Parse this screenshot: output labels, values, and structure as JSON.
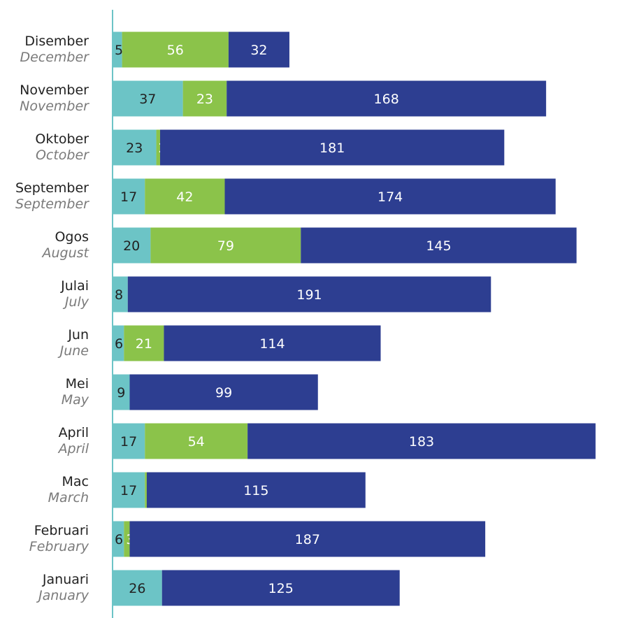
{
  "chart_data": {
    "type": "bar",
    "orientation": "horizontal",
    "stacked": true,
    "title": "",
    "xlabel": "",
    "ylabel": "",
    "xlim": [
      0,
      270
    ],
    "grid": false,
    "legend": "none",
    "categories": [
      {
        "label": "Disember",
        "label_en": "December"
      },
      {
        "label": "November",
        "label_en": "November"
      },
      {
        "label": "Oktober",
        "label_en": "October"
      },
      {
        "label": "September",
        "label_en": "September"
      },
      {
        "label": "Ogos",
        "label_en": "August"
      },
      {
        "label": "Julai",
        "label_en": "July"
      },
      {
        "label": "Jun",
        "label_en": "June"
      },
      {
        "label": "Mei",
        "label_en": "May"
      },
      {
        "label": "April",
        "label_en": "April"
      },
      {
        "label": "Mac",
        "label_en": "March"
      },
      {
        "label": "Februari",
        "label_en": "February"
      },
      {
        "label": "Januari",
        "label_en": "January"
      }
    ],
    "series": [
      {
        "color": "#6cc4c6",
        "label_color": "#222222",
        "values": [
          5,
          37,
          23,
          17,
          20,
          8,
          6,
          9,
          17,
          17,
          6,
          26
        ]
      },
      {
        "color": "#8bc34a",
        "label_color": "#ffffff",
        "values": [
          56,
          23,
          2,
          42,
          79,
          0,
          21,
          0,
          54,
          1,
          3,
          0
        ]
      },
      {
        "color": "#2d3e91",
        "label_color": "#ffffff",
        "values": [
          32,
          168,
          181,
          174,
          145,
          191,
          114,
          99,
          183,
          115,
          187,
          125
        ]
      }
    ],
    "axis_color": "#6cc4c6"
  }
}
